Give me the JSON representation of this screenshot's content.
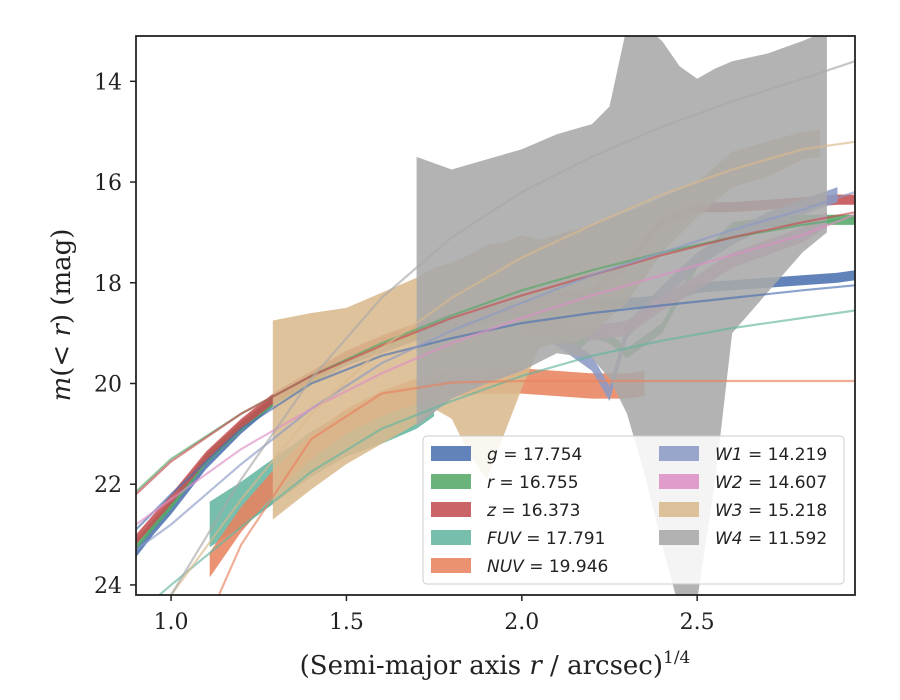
{
  "chart_data": {
    "type": "line",
    "xlabel": "(Semi-major axis r / arcsec)",
    "xlabel_main": "(Semi-major axis ",
    "xlabel_var": "r",
    "xlabel_rest": " / arcsec)",
    "xlabel_exp": "1/4",
    "ylabel": "m(< r) (mag)",
    "ylabel_m": "m",
    "ylabel_paren": "(",
    "ylabel_lt": "< ",
    "ylabel_r": "r",
    "ylabel_close": ")",
    "ylabel_unit": " (mag)",
    "xlim": [
      0.9,
      2.95
    ],
    "ylim": [
      24.2,
      13.1
    ],
    "y_inverted": true,
    "grid": false,
    "legend_position": "lower-right",
    "x_ticks": [
      1.0,
      1.5,
      2.0,
      2.5
    ],
    "x_tick_labels": [
      "1.0",
      "1.5",
      "2.0",
      "2.5"
    ],
    "y_ticks": [
      14,
      16,
      18,
      20,
      22,
      24
    ],
    "y_tick_labels": [
      "14",
      "16",
      "18",
      "20",
      "22",
      "24"
    ],
    "series": [
      {
        "name": "g = 17.754",
        "band": "g",
        "value_text": " = 17.754",
        "color": "#4c72b0",
        "band_x": [
          0.9,
          0.95,
          1.0,
          1.1,
          1.2,
          1.3,
          1.4,
          1.5,
          1.6,
          1.7,
          1.8,
          1.9,
          2.0,
          2.1,
          2.2,
          2.3,
          2.4,
          2.5,
          2.6,
          2.7,
          2.8,
          2.9,
          2.95
        ],
        "band_mid": [
          23.35,
          22.9,
          22.5,
          21.6,
          20.9,
          20.3,
          19.9,
          19.55,
          19.3,
          19.05,
          18.85,
          18.7,
          18.6,
          18.5,
          18.45,
          18.4,
          18.35,
          18.1,
          18.05,
          18.0,
          17.95,
          17.9,
          17.85
        ],
        "band_half": 0.1,
        "model_x": [
          0.9,
          1.0,
          1.2,
          1.4,
          1.6,
          1.8,
          2.0,
          2.2,
          2.4,
          2.6,
          2.8,
          2.95
        ],
        "model_y": [
          22.9,
          22.2,
          20.9,
          20.0,
          19.45,
          19.1,
          18.8,
          18.6,
          18.45,
          18.3,
          18.15,
          18.05
        ]
      },
      {
        "name": "r = 16.755",
        "band": "r",
        "value_text": " = 16.755",
        "color": "#55a868",
        "band_x": [
          0.9,
          0.95,
          1.0,
          1.1,
          1.2,
          1.3,
          1.4,
          1.5,
          1.6,
          1.7,
          1.8,
          1.9,
          2.0,
          2.05,
          2.1,
          2.15,
          2.2,
          2.25,
          2.3,
          2.4,
          2.5,
          2.6,
          2.7,
          2.8,
          2.9,
          2.95
        ],
        "band_mid": [
          23.2,
          22.8,
          22.4,
          21.5,
          20.85,
          20.3,
          19.9,
          19.5,
          19.2,
          19.0,
          18.8,
          18.65,
          18.55,
          18.5,
          18.7,
          19.3,
          19.0,
          19.1,
          19.4,
          18.9,
          17.6,
          16.9,
          16.8,
          16.75,
          16.75,
          16.75
        ],
        "band_half": 0.1,
        "model_x": [
          0.9,
          1.0,
          1.2,
          1.4,
          1.6,
          1.8,
          2.0,
          2.2,
          2.4,
          2.6,
          2.8,
          2.95
        ],
        "model_y": [
          22.15,
          21.5,
          20.6,
          19.85,
          19.2,
          18.65,
          18.15,
          17.75,
          17.4,
          17.1,
          16.85,
          16.7
        ]
      },
      {
        "name": "z = 16.373",
        "band": "z",
        "value_text": " = 16.373",
        "color": "#c44e52",
        "band_x": [
          0.9,
          0.95,
          1.0,
          1.1,
          1.2,
          1.3,
          1.4,
          1.5,
          1.6,
          1.7,
          1.8,
          1.9,
          2.0,
          2.1,
          2.2,
          2.3,
          2.4,
          2.5,
          2.6,
          2.7,
          2.8,
          2.9,
          2.95
        ],
        "band_mid": [
          23.1,
          22.7,
          22.3,
          21.45,
          20.8,
          20.25,
          19.85,
          19.45,
          19.15,
          18.9,
          18.7,
          18.55,
          18.45,
          18.3,
          18.2,
          17.6,
          16.8,
          16.5,
          16.5,
          16.45,
          16.4,
          16.35,
          16.35
        ],
        "band_half": 0.1,
        "model_x": [
          0.9,
          1.0,
          1.2,
          1.4,
          1.6,
          1.8,
          2.0,
          2.2,
          2.4,
          2.6,
          2.8,
          2.95
        ],
        "model_y": [
          22.2,
          21.55,
          20.6,
          19.85,
          19.25,
          18.7,
          18.25,
          17.85,
          17.45,
          17.1,
          16.8,
          16.6
        ]
      },
      {
        "name": "FUV = 17.791",
        "band": "FUV",
        "value_text": " = 17.791",
        "color": "#64b5a0",
        "band_x": [
          1.11,
          1.2,
          1.3,
          1.4,
          1.5,
          1.6,
          1.7,
          1.75
        ],
        "band_mid": [
          22.8,
          22.4,
          21.9,
          21.4,
          21.0,
          20.75,
          20.45,
          20.2
        ],
        "band_half": 0.45,
        "model_x": [
          0.9,
          1.0,
          1.2,
          1.4,
          1.6,
          1.8,
          2.0,
          2.2,
          2.4,
          2.6,
          2.8,
          2.95
        ],
        "model_y": [
          24.6,
          24.0,
          22.85,
          21.75,
          20.9,
          20.35,
          19.85,
          19.45,
          19.15,
          18.9,
          18.7,
          18.55
        ]
      },
      {
        "name": "NUV = 19.946",
        "band": "NUV",
        "value_text": " = 19.946",
        "color": "#e8835f",
        "band_x": [
          1.11,
          1.2,
          1.3,
          1.4,
          1.5,
          1.6,
          1.7,
          1.8,
          1.9,
          2.0,
          2.1,
          2.2,
          2.3,
          2.35
        ],
        "band_mid": [
          23.6,
          22.7,
          21.9,
          21.25,
          20.75,
          20.4,
          20.15,
          20.0,
          19.95,
          19.95,
          20.0,
          20.05,
          20.05,
          20.0
        ],
        "band_half": 0.25,
        "model_x": [
          1.13,
          1.2,
          1.4,
          1.6,
          1.8,
          2.0,
          2.2,
          2.4,
          2.6,
          2.8,
          2.95
        ],
        "model_y": [
          24.3,
          23.2,
          21.1,
          20.2,
          19.98,
          19.95,
          19.95,
          19.95,
          19.95,
          19.95,
          19.95
        ]
      },
      {
        "name": "W1 = 14.219",
        "band": "W1",
        "value_text": " = 14.219",
        "color": "#8c9ac4",
        "band_x": [
          2.0,
          2.1,
          2.2,
          2.25,
          2.3,
          2.4,
          2.5,
          2.6,
          2.7,
          2.8,
          2.9
        ],
        "band_mid": [
          18.9,
          19.1,
          19.6,
          20.2,
          18.95,
          18.2,
          17.55,
          17.1,
          16.75,
          16.5,
          16.25
        ],
        "band_half": 0.15,
        "model_x": [
          0.9,
          1.0,
          1.2,
          1.4,
          1.6,
          1.8,
          2.0,
          2.2,
          2.4,
          2.6,
          2.8,
          2.95
        ],
        "model_y": [
          23.3,
          22.8,
          21.6,
          20.5,
          19.6,
          18.95,
          18.4,
          17.85,
          17.4,
          16.95,
          16.55,
          16.2
        ]
      },
      {
        "name": "W2 = 14.607",
        "band": "W2",
        "value_text": " = 14.607",
        "color": "#dd8fc4",
        "band_x": [
          2.0,
          2.1,
          2.2,
          2.3,
          2.4,
          2.5,
          2.6,
          2.7,
          2.8,
          2.87
        ],
        "band_mid": [
          18.8,
          18.85,
          19.0,
          18.9,
          18.4,
          18.0,
          17.55,
          17.3,
          17.05,
          16.75
        ],
        "band_half": 0.15,
        "model_x": [
          0.9,
          1.0,
          1.2,
          1.4,
          1.6,
          1.8,
          2.0,
          2.2,
          2.4,
          2.6,
          2.8,
          2.95
        ],
        "model_y": [
          22.8,
          22.3,
          21.3,
          20.5,
          19.8,
          19.2,
          18.7,
          18.25,
          17.85,
          17.45,
          17.05,
          16.65
        ]
      },
      {
        "name": "W3 = 15.218",
        "band": "W3",
        "value_text": " = 15.218",
        "color": "#dab98e",
        "band_x": [
          1.29,
          1.4,
          1.5,
          1.6,
          1.7,
          1.75,
          1.8,
          1.85,
          1.9,
          1.95,
          2.0,
          2.05,
          2.1,
          2.15,
          2.2,
          2.3,
          2.4,
          2.5,
          2.6,
          2.7,
          2.8,
          2.85
        ],
        "band_lo": [
          22.7,
          22.1,
          21.6,
          21.2,
          20.8,
          20.5,
          20.7,
          21.4,
          21.9,
          21.0,
          20.1,
          19.3,
          19.2,
          19.2,
          19.0,
          18.4,
          17.4,
          16.7,
          16.1,
          15.9,
          15.55,
          15.5
        ],
        "band_hi": [
          18.75,
          18.6,
          18.5,
          18.2,
          17.9,
          17.7,
          17.6,
          17.45,
          17.25,
          17.2,
          17.05,
          17.15,
          17.05,
          16.95,
          16.85,
          16.6,
          16.3,
          16.0,
          15.4,
          15.2,
          15.0,
          14.95
        ],
        "model_x": [
          0.9,
          1.0,
          1.2,
          1.4,
          1.6,
          1.8,
          2.0,
          2.2,
          2.4,
          2.6,
          2.8,
          2.95
        ],
        "model_y": [
          24.6,
          24.2,
          22.3,
          20.6,
          19.3,
          18.3,
          17.5,
          16.85,
          16.25,
          15.75,
          15.35,
          15.2
        ]
      },
      {
        "name": "W4 = 11.592",
        "band": "W4",
        "value_text": " = 11.592",
        "color": "#a9a9a9",
        "band_x": [
          1.7,
          1.8,
          1.9,
          2.0,
          2.1,
          2.2,
          2.25,
          2.3,
          2.35,
          2.4,
          2.45,
          2.5,
          2.55,
          2.6,
          2.7,
          2.8,
          2.87
        ],
        "band_lo": [
          20.85,
          20.3,
          20.0,
          19.75,
          19.4,
          19.5,
          19.9,
          20.6,
          21.8,
          23.2,
          24.5,
          24.3,
          22.0,
          19.0,
          18.2,
          17.4,
          17.0
        ],
        "band_hi": [
          15.5,
          15.75,
          15.55,
          15.35,
          15.05,
          14.85,
          14.5,
          12.9,
          12.9,
          13.2,
          13.7,
          13.95,
          13.75,
          13.6,
          13.45,
          13.2,
          13.0
        ],
        "model_x": [
          0.9,
          1.0,
          1.2,
          1.4,
          1.6,
          1.8,
          2.0,
          2.2,
          2.4,
          2.6,
          2.8,
          2.95
        ],
        "model_y": [
          25.0,
          24.2,
          21.9,
          19.9,
          18.3,
          17.1,
          16.2,
          15.5,
          14.9,
          14.4,
          13.95,
          13.6
        ]
      }
    ]
  }
}
